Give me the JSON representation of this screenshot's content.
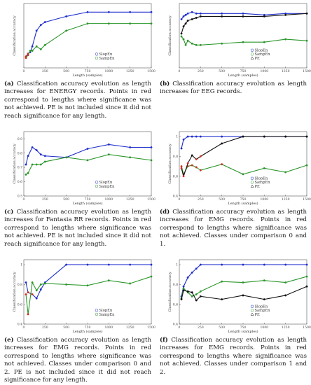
{
  "chart_data": [
    {
      "type": "line",
      "panel_label": "(a)",
      "caption": "Classification accuracy evolution as length increases for ENERGY records. Points in red correspond to lengths where significance was not achieved. PE is not included since it did not reach significance for any length.",
      "xlabel": "Length (samples)",
      "ylabel": "Classification accuracy",
      "xlim": [
        0,
        1500
      ],
      "ylim": [
        0.5,
        0.95
      ],
      "xticks": [
        0,
        250,
        500,
        750,
        1000,
        1250,
        1500
      ],
      "yticks": [],
      "legend": [
        "SlopEn",
        "SampEn"
      ],
      "legend_position": "lower-right",
      "series": [
        {
          "name": "SlopEn",
          "color": "#1f2ecc",
          "x": [
            25,
            50,
            75,
            100,
            150,
            200,
            250,
            500,
            750,
            1000,
            1250,
            1500
          ],
          "y": [
            0.58,
            0.6,
            0.61,
            0.65,
            0.76,
            0.8,
            0.82,
            0.86,
            0.89,
            0.89,
            0.89,
            0.89
          ],
          "red": [
            0,
            1
          ]
        },
        {
          "name": "SampEn",
          "color": "#2a962a",
          "x": [
            25,
            50,
            75,
            100,
            150,
            200,
            250,
            500,
            750,
            1000,
            1250,
            1500
          ],
          "y": [
            0.57,
            0.59,
            0.62,
            0.62,
            0.65,
            0.63,
            0.66,
            0.76,
            0.81,
            0.81,
            0.81,
            0.81
          ],
          "red": [
            0,
            1
          ]
        }
      ]
    },
    {
      "type": "line",
      "panel_label": "(b)",
      "caption": "Classification accuracy evolution as length increases for EEG records.",
      "xlabel": "Length (samples)",
      "ylabel": "Classification accuracy",
      "xlim": [
        0,
        1500
      ],
      "ylim": [
        0.5,
        0.95
      ],
      "xticks": [
        0,
        250,
        500,
        750,
        1000,
        1250,
        1500
      ],
      "yticks": [],
      "legend": [
        "SlopEn",
        "SampEn",
        "PE"
      ],
      "legend_position": "lower-right",
      "series": [
        {
          "name": "SlopEn",
          "color": "#1f2ecc",
          "x": [
            25,
            50,
            75,
            100,
            150,
            200,
            250,
            500,
            750,
            1000,
            1250,
            1500
          ],
          "y": [
            0.84,
            0.86,
            0.87,
            0.88,
            0.89,
            0.88,
            0.88,
            0.88,
            0.88,
            0.87,
            0.88,
            0.88
          ],
          "red": []
        },
        {
          "name": "SampEn",
          "color": "#2a962a",
          "x": [
            25,
            50,
            75,
            100,
            150,
            200,
            250,
            500,
            750,
            1000,
            1250,
            1500
          ],
          "y": [
            0.72,
            0.7,
            0.66,
            0.69,
            0.67,
            0.66,
            0.66,
            0.67,
            0.68,
            0.68,
            0.7,
            0.69
          ],
          "red": []
        },
        {
          "name": "PE",
          "color": "#111111",
          "x": [
            25,
            50,
            75,
            100,
            150,
            200,
            250,
            500,
            750,
            1000,
            1250,
            1500
          ],
          "y": [
            0.74,
            0.79,
            0.81,
            0.83,
            0.84,
            0.85,
            0.86,
            0.86,
            0.86,
            0.86,
            0.87,
            0.88
          ],
          "red": []
        }
      ]
    },
    {
      "type": "line",
      "panel_label": "(c)",
      "caption": "Classification accuracy evolution as length increases for Fantasia RR records. Points in red correspond to lengths where significance was not achieved. PE is not included since it did not reach significance for any length.",
      "xlabel": "Length (samples)",
      "ylabel": "Classification accuracy",
      "xlim": [
        0,
        1500
      ],
      "ylim": [
        0.5,
        0.95
      ],
      "xticks": [
        0,
        250,
        500,
        750,
        1000,
        1250,
        1500
      ],
      "yticks": [
        "0.9",
        "0.8",
        "0.7",
        "0.6",
        "0.5"
      ],
      "legend": [
        "SlopEn",
        "SampEn"
      ],
      "legend_position": "lower-right",
      "series": [
        {
          "name": "SlopEn",
          "color": "#1f2ecc",
          "x": [
            25,
            50,
            100,
            150,
            200,
            250,
            500,
            750,
            1000,
            1250,
            1500
          ],
          "y": [
            0.72,
            0.78,
            0.84,
            0.82,
            0.79,
            0.78,
            0.77,
            0.83,
            0.86,
            0.84,
            0.84
          ],
          "red": []
        },
        {
          "name": "SampEn",
          "color": "#2a962a",
          "x": [
            25,
            50,
            100,
            150,
            200,
            250,
            500,
            750,
            1000,
            1250,
            1500
          ],
          "y": [
            0.65,
            0.66,
            0.72,
            0.72,
            0.72,
            0.74,
            0.77,
            0.75,
            0.79,
            0.77,
            0.75
          ],
          "red": []
        }
      ]
    },
    {
      "type": "line",
      "panel_label": "(d)",
      "caption": "Classification accuracy evolution as length increases for EMG records. Points in red correspond to lengths where significance was not achieved. Classes under comparison 0 and 1.",
      "xlabel": "Length (samples)",
      "ylabel": "Classification accuracy",
      "xlim": [
        0,
        1500
      ],
      "ylim": [
        0.4,
        1.05
      ],
      "xticks": [
        0,
        250,
        500,
        750,
        1000,
        1250,
        1500
      ],
      "yticks": [
        "1",
        "0.8",
        "0.6",
        "0.4"
      ],
      "legend": [
        "SlopEn",
        "SampEn",
        "PE"
      ],
      "legend_position": "lower-right",
      "series": [
        {
          "name": "SlopEn",
          "color": "#1f2ecc",
          "x": [
            25,
            50,
            100,
            150,
            200,
            250,
            500,
            750,
            1000,
            1250,
            1500
          ],
          "y": [
            0.88,
            0.97,
            1.0,
            1.0,
            1.0,
            1.0,
            1.0,
            1.0,
            1.0,
            1.0,
            1.0
          ],
          "red": []
        },
        {
          "name": "SampEn",
          "color": "#2a962a",
          "x": [
            25,
            50,
            100,
            150,
            200,
            250,
            500,
            750,
            1000,
            1250,
            1500
          ],
          "y": [
            0.7,
            0.62,
            0.7,
            0.71,
            0.69,
            0.66,
            0.72,
            0.62,
            0.68,
            0.64,
            0.71
          ],
          "red": [
            0,
            1,
            2,
            3,
            4,
            5,
            6
          ]
        },
        {
          "name": "PE",
          "color": "#111111",
          "x": [
            25,
            50,
            100,
            150,
            200,
            250,
            500,
            750,
            1000,
            1250,
            1500
          ],
          "y": [
            0.68,
            0.6,
            0.73,
            0.81,
            0.77,
            0.8,
            0.93,
            1.0,
            1.0,
            1.0,
            1.0
          ],
          "red": [
            0,
            1,
            2,
            4,
            5
          ]
        }
      ]
    },
    {
      "type": "line",
      "panel_label": "(e)",
      "caption": "Classification accuracy evolution as length increases for EMG records. Points in red correspond to lengths where significance was not achieved. Classes under comparison 0 and 2. PE is not included since it did not reach significance for any length.",
      "xlabel": "Length (samples)",
      "ylabel": "Classification accuracy",
      "xlim": [
        0,
        1500
      ],
      "ylim": [
        0.4,
        1.05
      ],
      "xticks": [
        0,
        250,
        500,
        750,
        1000,
        1250,
        1500
      ],
      "yticks": [
        "1",
        "0.8",
        "0.6",
        "0.4"
      ],
      "legend": [
        "SlopEn",
        "SampEn"
      ],
      "legend_position": "lower-right",
      "series": [
        {
          "name": "SlopEn",
          "color": "#1f2ecc",
          "x": [
            25,
            50,
            100,
            150,
            200,
            250,
            500,
            750,
            1000,
            1250,
            1500
          ],
          "y": [
            0.82,
            0.72,
            0.7,
            0.66,
            0.75,
            0.82,
            1.0,
            1.0,
            1.0,
            1.0,
            1.0
          ],
          "red": [
            1,
            2
          ]
        },
        {
          "name": "SampEn",
          "color": "#2a962a",
          "x": [
            25,
            50,
            100,
            150,
            200,
            250,
            500,
            750,
            1000,
            1250,
            1500
          ],
          "y": [
            0.7,
            0.5,
            0.82,
            0.74,
            0.8,
            0.81,
            0.8,
            0.79,
            0.84,
            0.81,
            0.88
          ],
          "red": [
            0,
            1
          ]
        }
      ]
    },
    {
      "type": "line",
      "panel_label": "(f)",
      "caption": "Classification accuracy evolution as length increases for EMG records. Points in red correspond to lengths where significance was not achieved. Classes under comparison 1 and 2.",
      "xlabel": "Length (samples)",
      "ylabel": "Classification accuracy",
      "xlim": [
        0,
        1500
      ],
      "ylim": [
        0.4,
        1.05
      ],
      "xticks": [
        0,
        250,
        500,
        750,
        1000,
        1250,
        1500
      ],
      "yticks": [
        "1",
        "0.8",
        "0.6",
        "0.4"
      ],
      "legend": [
        "SlopEn",
        "SampEn",
        "PE"
      ],
      "legend_position": "lower-right",
      "series": [
        {
          "name": "SlopEn",
          "color": "#1f2ecc",
          "x": [
            25,
            50,
            100,
            150,
            200,
            250,
            500,
            750,
            1000,
            1250,
            1500
          ],
          "y": [
            0.68,
            0.78,
            0.87,
            0.92,
            0.96,
            1.0,
            1.0,
            1.0,
            1.0,
            1.0,
            1.0
          ],
          "red": []
        },
        {
          "name": "SampEn",
          "color": "#2a962a",
          "x": [
            25,
            50,
            100,
            150,
            200,
            250,
            500,
            750,
            1000,
            1250,
            1500
          ],
          "y": [
            0.66,
            0.76,
            0.72,
            0.68,
            0.7,
            0.73,
            0.83,
            0.82,
            0.84,
            0.82,
            0.88
          ],
          "red": []
        },
        {
          "name": "PE",
          "color": "#111111",
          "x": [
            25,
            50,
            100,
            150,
            200,
            250,
            500,
            750,
            1000,
            1250,
            1500
          ],
          "y": [
            0.65,
            0.74,
            0.73,
            0.72,
            0.64,
            0.68,
            0.65,
            0.69,
            0.65,
            0.69,
            0.78
          ],
          "red": []
        }
      ]
    }
  ]
}
